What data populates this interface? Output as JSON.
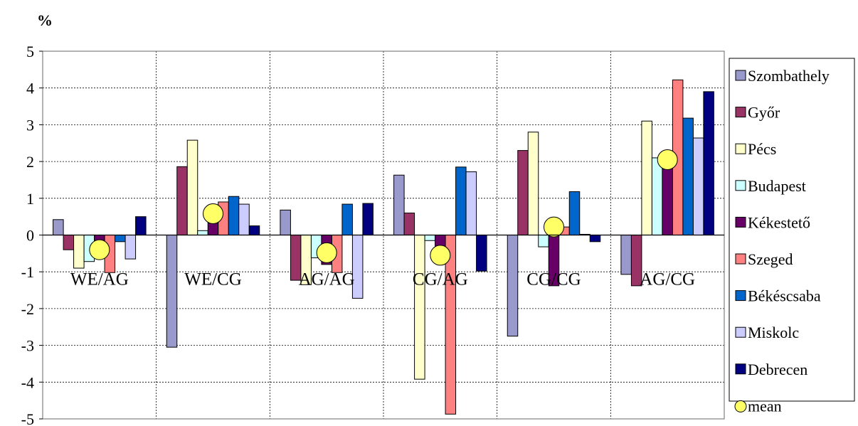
{
  "chart_data": {
    "type": "bar",
    "y_unit_label": "%",
    "categories": [
      "WE/AG",
      "WE/CG",
      "AG/AG",
      "CG/AG",
      "CG/CG",
      "AG/CG"
    ],
    "ylim": [
      -5,
      5
    ],
    "yticks": [
      5,
      4,
      3,
      2,
      1,
      0,
      -1,
      -2,
      -3,
      -4,
      -5
    ],
    "grid": true,
    "legend_position": "right",
    "series": [
      {
        "name": "Szombathely",
        "color": "#9999cc",
        "values": [
          0.42,
          -3.05,
          0.68,
          1.63,
          -2.75,
          -1.07
        ]
      },
      {
        "name": "Győr",
        "color": "#993366",
        "values": [
          -0.4,
          1.86,
          -1.23,
          0.6,
          2.3,
          -1.38
        ]
      },
      {
        "name": "Pécs",
        "color": "#ffffcc",
        "values": [
          -0.9,
          2.58,
          -1.35,
          -3.92,
          2.8,
          3.1
        ]
      },
      {
        "name": "Budapest",
        "color": "#ccffff",
        "values": [
          -0.72,
          0.12,
          -0.62,
          -0.15,
          -0.32,
          2.1
        ]
      },
      {
        "name": "Kékestető",
        "color": "#660066",
        "values": [
          -0.15,
          0.4,
          -0.8,
          -0.3,
          -1.38,
          1.85
        ]
      },
      {
        "name": "Szeged",
        "color": "#ff8080",
        "values": [
          -1.02,
          0.9,
          -1.02,
          -4.87,
          0.22,
          4.22
        ]
      },
      {
        "name": "Békéscsaba",
        "color": "#0066cc",
        "values": [
          -0.18,
          1.05,
          0.84,
          1.85,
          1.18,
          3.18
        ]
      },
      {
        "name": "Miskolc",
        "color": "#ccccff",
        "values": [
          -0.65,
          0.84,
          -1.72,
          1.72,
          0.02,
          2.64
        ]
      },
      {
        "name": "Debrecen",
        "color": "#000080",
        "values": [
          0.5,
          0.25,
          0.86,
          -0.98,
          -0.18,
          3.9
        ]
      }
    ],
    "mean": {
      "name": "mean",
      "color": "#ffff66",
      "values": [
        -0.4,
        0.58,
        -0.48,
        -0.55,
        0.22,
        2.05
      ]
    }
  }
}
